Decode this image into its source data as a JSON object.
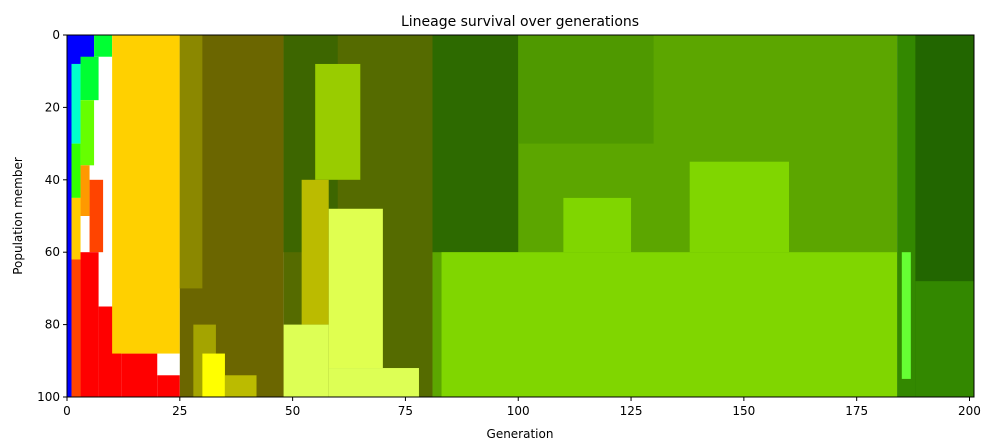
{
  "chart_data": {
    "type": "heatmap",
    "title": "Lineage survival over generations",
    "xlabel": "Generation",
    "ylabel": "Population member",
    "xlim": [
      0,
      201
    ],
    "ylim": [
      100,
      0
    ],
    "xticks": [
      0,
      25,
      50,
      75,
      100,
      125,
      150,
      175,
      200
    ],
    "yticks": [
      0,
      20,
      40,
      60,
      80,
      100
    ],
    "grid": false,
    "legend": "none",
    "colors": {
      "blue": "#0000ff",
      "blue_medium": "#0033ff",
      "cyan": "#00ffcc",
      "green_bright": "#00ff33",
      "green_yellow": "#33ff00",
      "lime": "#66ff00",
      "yellow_green": "#99ff00",
      "orange_yellow": "#ffcc00",
      "orange": "#ff9900",
      "red_orange": "#ff4400",
      "red": "#ff0000",
      "gold": "#ffd000",
      "olive_dark": "#6b6600",
      "olive": "#8b8800",
      "olive_mid": "#a4a400",
      "yellow": "#ffff00",
      "yellow_pale": "#e0ff50",
      "khaki": "#bbbb00",
      "olive_green": "#556b00",
      "green_dark": "#3d6600",
      "olive_green_light": "#99cc00",
      "pale_lime": "#ddff55",
      "forest": "#2d6a00",
      "grass": "#4f9900",
      "grass_light": "#5ca600",
      "chartreuse": "#80d600",
      "green_mid": "#338800",
      "green_deep": "#226600",
      "neon_green": "#66ff33"
    },
    "blocks": [
      {
        "x": [
          0,
          1
        ],
        "y": [
          0,
          100
        ],
        "color": "blue"
      },
      {
        "x": [
          0,
          6
        ],
        "y": [
          0,
          8
        ],
        "color": "blue"
      },
      {
        "x": [
          1,
          3
        ],
        "y": [
          8,
          30
        ],
        "color": "cyan"
      },
      {
        "x": [
          3,
          7
        ],
        "y": [
          6,
          18
        ],
        "color": "green_bright"
      },
      {
        "x": [
          1,
          3
        ],
        "y": [
          30,
          45
        ],
        "color": "green_yellow"
      },
      {
        "x": [
          3,
          6
        ],
        "y": [
          18,
          36
        ],
        "color": "lime"
      },
      {
        "x": [
          6,
          10
        ],
        "y": [
          0,
          6
        ],
        "color": "green_bright"
      },
      {
        "x": [
          1,
          3
        ],
        "y": [
          45,
          62
        ],
        "color": "orange_yellow"
      },
      {
        "x": [
          3,
          5
        ],
        "y": [
          36,
          50
        ],
        "color": "orange"
      },
      {
        "x": [
          5,
          8
        ],
        "y": [
          40,
          60
        ],
        "color": "red_orange"
      },
      {
        "x": [
          1,
          3
        ],
        "y": [
          62,
          100
        ],
        "color": "red_orange"
      },
      {
        "x": [
          3,
          7
        ],
        "y": [
          60,
          100
        ],
        "color": "red"
      },
      {
        "x": [
          7,
          12
        ],
        "y": [
          75,
          100
        ],
        "color": "red"
      },
      {
        "x": [
          12,
          20
        ],
        "y": [
          88,
          100
        ],
        "color": "red"
      },
      {
        "x": [
          20,
          25
        ],
        "y": [
          94,
          100
        ],
        "color": "red"
      },
      {
        "x": [
          10,
          25
        ],
        "y": [
          0,
          88
        ],
        "color": "gold"
      },
      {
        "x": [
          25,
          48
        ],
        "y": [
          0,
          100
        ],
        "color": "olive_dark"
      },
      {
        "x": [
          25,
          30
        ],
        "y": [
          0,
          70
        ],
        "color": "olive"
      },
      {
        "x": [
          28,
          33
        ],
        "y": [
          80,
          100
        ],
        "color": "olive_mid"
      },
      {
        "x": [
          30,
          35
        ],
        "y": [
          88,
          100
        ],
        "color": "yellow"
      },
      {
        "x": [
          35,
          42
        ],
        "y": [
          94,
          100
        ],
        "color": "khaki"
      },
      {
        "x": [
          48,
          81
        ],
        "y": [
          0,
          100
        ],
        "color": "olive_green"
      },
      {
        "x": [
          48,
          60
        ],
        "y": [
          0,
          60
        ],
        "color": "green_dark"
      },
      {
        "x": [
          55,
          65
        ],
        "y": [
          8,
          40
        ],
        "color": "olive_green_light"
      },
      {
        "x": [
          52,
          58
        ],
        "y": [
          40,
          80
        ],
        "color": "khaki"
      },
      {
        "x": [
          58,
          70
        ],
        "y": [
          48,
          92
        ],
        "color": "yellow_pale"
      },
      {
        "x": [
          48,
          58
        ],
        "y": [
          80,
          100
        ],
        "color": "pale_lime"
      },
      {
        "x": [
          58,
          78
        ],
        "y": [
          92,
          100
        ],
        "color": "pale_lime"
      },
      {
        "x": [
          81,
          184
        ],
        "y": [
          0,
          100
        ],
        "color": "grass_light"
      },
      {
        "x": [
          81,
          100
        ],
        "y": [
          0,
          60
        ],
        "color": "forest"
      },
      {
        "x": [
          100,
          130
        ],
        "y": [
          0,
          30
        ],
        "color": "grass"
      },
      {
        "x": [
          83,
          184
        ],
        "y": [
          60,
          100
        ],
        "color": "chartreuse"
      },
      {
        "x": [
          110,
          125
        ],
        "y": [
          45,
          60
        ],
        "color": "chartreuse"
      },
      {
        "x": [
          138,
          160
        ],
        "y": [
          35,
          60
        ],
        "color": "chartreuse"
      },
      {
        "x": [
          184,
          201
        ],
        "y": [
          0,
          100
        ],
        "color": "green_deep"
      },
      {
        "x": [
          184,
          188
        ],
        "y": [
          0,
          100
        ],
        "color": "green_mid"
      },
      {
        "x": [
          185,
          187
        ],
        "y": [
          60,
          95
        ],
        "color": "neon_green"
      },
      {
        "x": [
          188,
          201
        ],
        "y": [
          68,
          100
        ],
        "color": "green_mid"
      }
    ]
  }
}
